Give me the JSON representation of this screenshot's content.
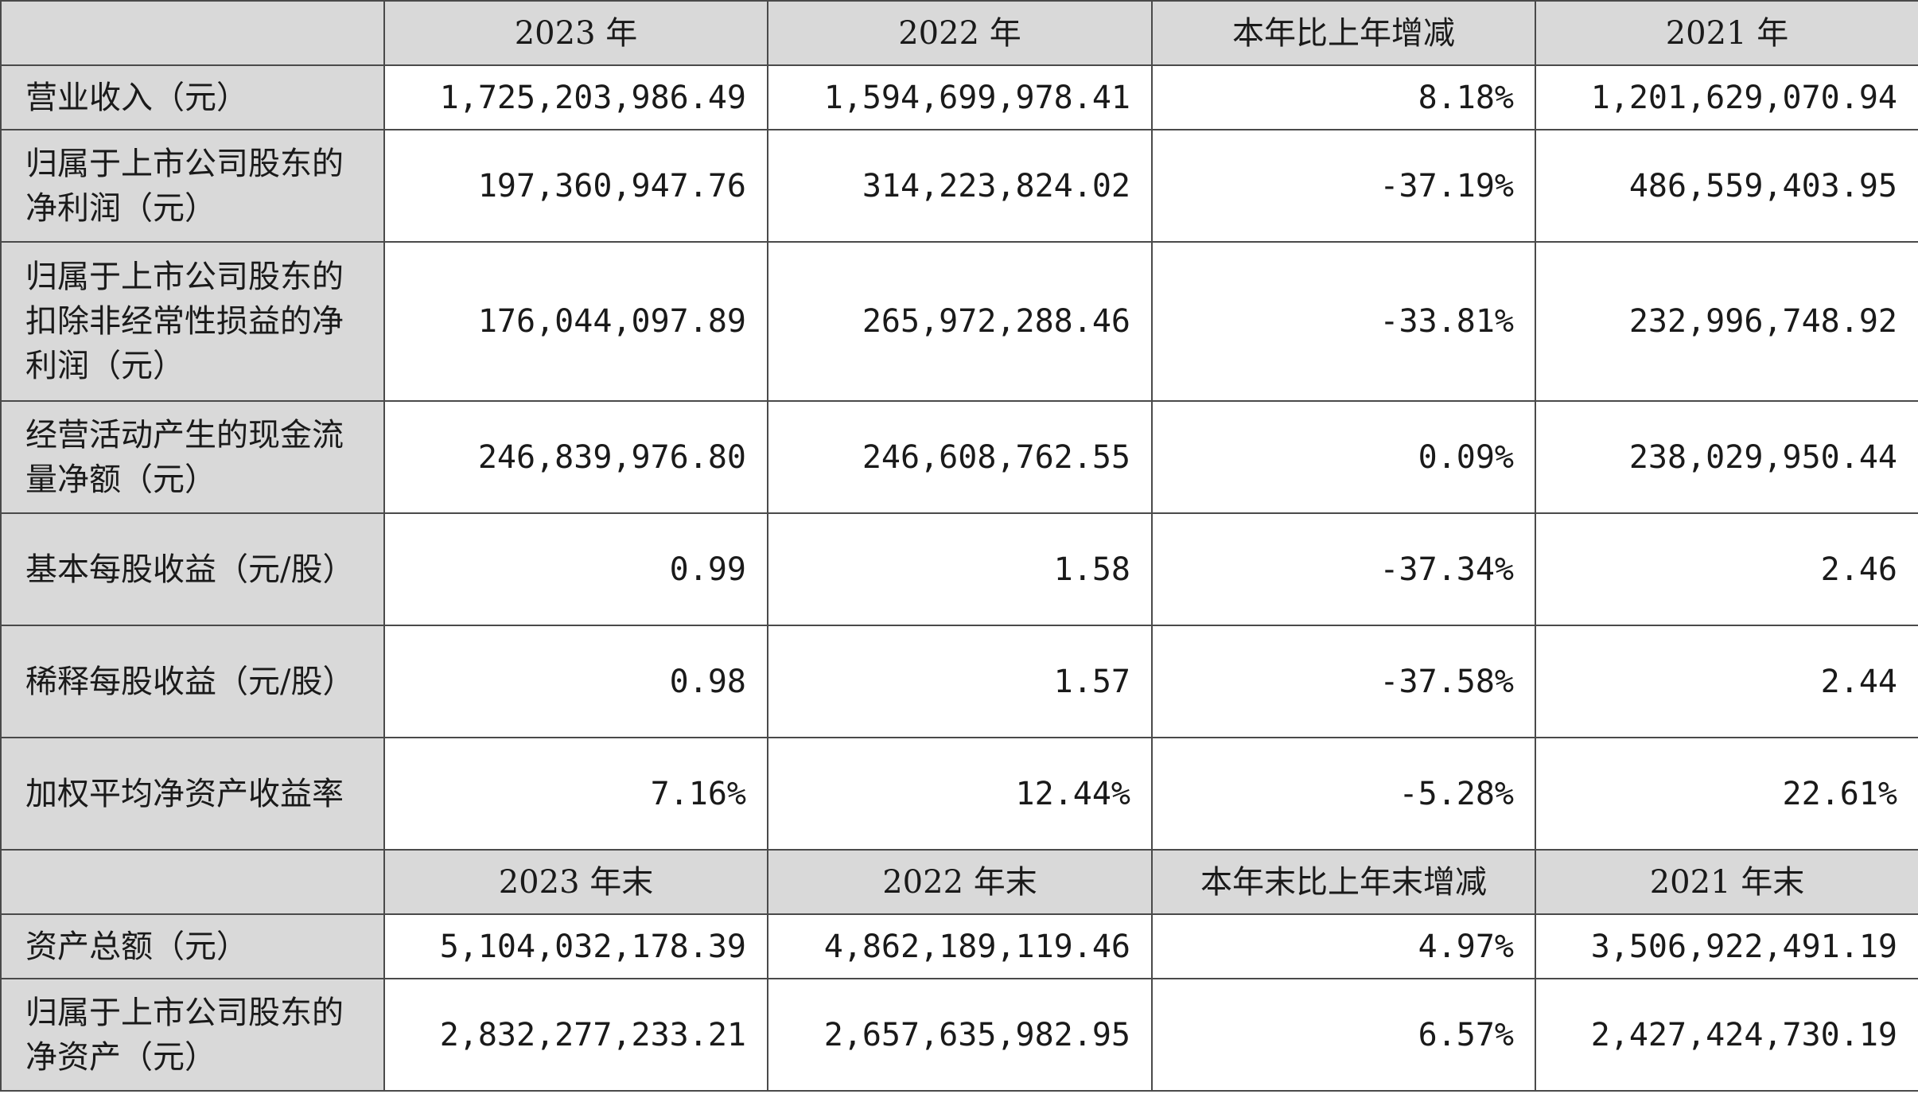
{
  "table": {
    "header_main": [
      "",
      "2023 年",
      "2022 年",
      "本年比上年增减",
      "2021 年"
    ],
    "rows_main": [
      {
        "label": "营业收入（元）",
        "values": [
          "1,725,203,986.49",
          "1,594,699,978.41",
          "8.18%",
          "1,201,629,070.94"
        ]
      },
      {
        "label": "归属于上市公司股东的净利润（元）",
        "values": [
          "197,360,947.76",
          "314,223,824.02",
          "-37.19%",
          "486,559,403.95"
        ]
      },
      {
        "label": "归属于上市公司股东的扣除非经常性损益的净利润（元）",
        "values": [
          "176,044,097.89",
          "265,972,288.46",
          "-33.81%",
          "232,996,748.92"
        ]
      },
      {
        "label": "经营活动产生的现金流量净额（元）",
        "values": [
          "246,839,976.80",
          "246,608,762.55",
          "0.09%",
          "238,029,950.44"
        ]
      },
      {
        "label": "基本每股收益（元/股）",
        "values": [
          "0.99",
          "1.58",
          "-37.34%",
          "2.46"
        ]
      },
      {
        "label": "稀释每股收益（元/股）",
        "values": [
          "0.98",
          "1.57",
          "-37.58%",
          "2.44"
        ]
      },
      {
        "label": "加权平均净资产收益率",
        "values": [
          "7.16%",
          "12.44%",
          "-5.28%",
          "22.61%"
        ]
      }
    ],
    "header_end": [
      "",
      "2023 年末",
      "2022 年末",
      "本年末比上年末增减",
      "2021 年末"
    ],
    "rows_end": [
      {
        "label": "资产总额（元）",
        "values": [
          "5,104,032,178.39",
          "4,862,189,119.46",
          "4.97%",
          "3,506,922,491.19"
        ]
      },
      {
        "label": "归属于上市公司股东的净资产（元）",
        "values": [
          "2,832,277,233.21",
          "2,657,635,982.95",
          "6.57%",
          "2,427,424,730.19"
        ]
      }
    ]
  }
}
